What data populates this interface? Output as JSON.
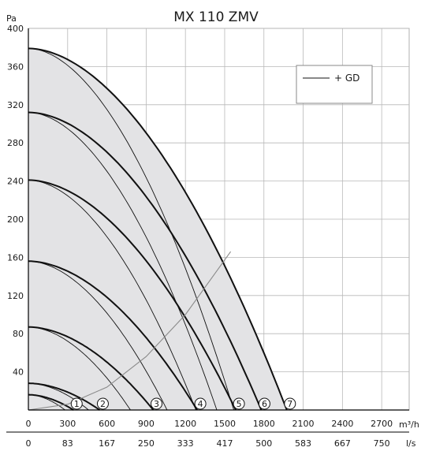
{
  "chart_data": {
    "type": "line",
    "title": "MX 110 ZMV",
    "ylabel": "Pa",
    "xlabel": "m³/h",
    "x2label": "l/s",
    "xlim": [
      0,
      2910
    ],
    "ylim": [
      0,
      400
    ],
    "grid": true,
    "yticks": [
      "40",
      "80",
      "120",
      "160",
      "200",
      "240",
      "280",
      "320",
      "360",
      "400"
    ],
    "xticks": [
      "0",
      "300",
      "600",
      "900",
      "1200",
      "1500",
      "1800",
      "2100",
      "2400",
      "2700"
    ],
    "x2ticks": [
      "0",
      "83",
      "167",
      "250",
      "333",
      "417",
      "500",
      "583",
      "667",
      "750"
    ],
    "legend": {
      "position": "top-right",
      "entries": [
        "+ GD"
      ]
    },
    "series": [
      {
        "label": "1",
        "max_pressure": 16,
        "max_flow": 345,
        "gd_max_flow": 280
      },
      {
        "label": "2",
        "max_pressure": 28,
        "max_flow": 545,
        "gd_max_flow": 460
      },
      {
        "label": "3",
        "max_pressure": 87,
        "max_flow": 955,
        "gd_max_flow": 780
      },
      {
        "label": "4",
        "max_pressure": 156,
        "max_flow": 1290,
        "gd_max_flow": 1060
      },
      {
        "label": "5",
        "max_pressure": 241,
        "max_flow": 1585,
        "gd_max_flow": 1280
      },
      {
        "label": "6",
        "max_pressure": 312,
        "max_flow": 1780,
        "gd_max_flow": 1440
      },
      {
        "label": "7",
        "max_pressure": 379,
        "max_flow": 1975,
        "gd_max_flow": 1570
      }
    ],
    "system_curve": {
      "x": [
        0,
        300,
        600,
        900,
        1200,
        1546
      ],
      "y": [
        0,
        6,
        24,
        56,
        100,
        166
      ]
    }
  }
}
